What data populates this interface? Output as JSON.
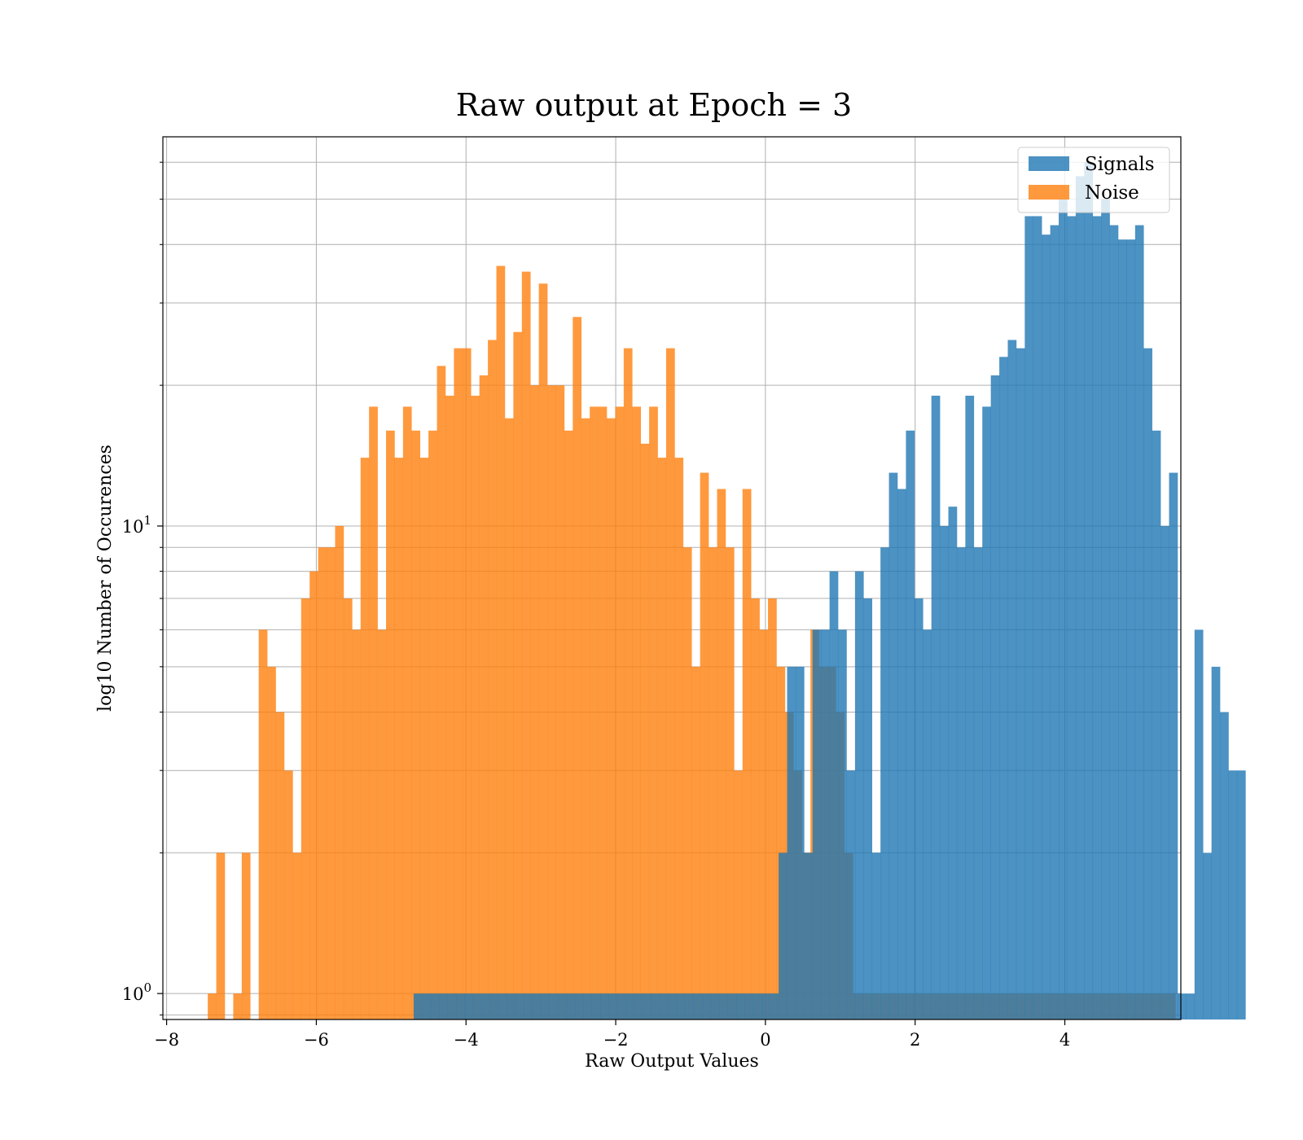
{
  "chart_data": {
    "type": "bar",
    "title": "Raw output at Epoch = 3",
    "xlabel": "Raw Output Values",
    "ylabel": "log10 Number of Occurences",
    "xlim": [
      -8.05,
      5.55
    ],
    "ylim": [
      0.88,
      68
    ],
    "yscale": "log",
    "grid": true,
    "legend_position": "top-right",
    "xticks": [
      -8,
      -6,
      -4,
      -2,
      0,
      2,
      4
    ],
    "xtick_labels": [
      "−8",
      "−6",
      "−4",
      "−2",
      "0",
      "2",
      "4"
    ],
    "yticks_major": [
      1,
      10
    ],
    "ytick_labels": [
      {
        "base": "10",
        "exp": "0"
      },
      {
        "base": "10",
        "exp": "1"
      }
    ],
    "yticks_minor": [
      0.9,
      2,
      3,
      4,
      5,
      6,
      7,
      8,
      9,
      20,
      30,
      40,
      50,
      60
    ],
    "series": [
      {
        "name": "Signals",
        "color": "#1f77b4",
        "opacity": 0.8,
        "bin_start": -4.7,
        "bin_width": 0.1134,
        "counts": [
          1,
          1,
          1,
          1,
          1,
          1,
          1,
          1,
          1,
          1,
          1,
          1,
          1,
          1,
          1,
          1,
          1,
          1,
          1,
          1,
          1,
          1,
          1,
          1,
          1,
          1,
          1,
          1,
          1,
          1,
          1,
          1,
          1,
          1,
          1,
          1,
          1,
          1,
          1,
          1,
          1,
          1,
          1,
          2,
          5,
          5,
          2,
          6,
          6,
          8,
          6,
          3,
          8,
          7,
          2,
          9,
          13,
          12,
          16,
          7,
          6,
          19,
          10,
          11,
          9,
          19,
          9,
          18,
          21,
          23,
          25,
          24,
          46,
          46,
          42,
          44,
          50,
          46,
          56,
          60,
          46,
          50,
          44,
          41,
          41,
          44,
          24,
          16,
          10,
          13,
          1,
          1,
          6,
          2,
          5,
          4,
          3,
          3
        ]
      },
      {
        "name": "Noise",
        "color": "#ff7f0e",
        "opacity": 0.8,
        "bin_start": -7.45,
        "bin_width": 0.1134,
        "counts": [
          1,
          2,
          0,
          1,
          2,
          0,
          6,
          5,
          4,
          3,
          2,
          7,
          8,
          9,
          9,
          10,
          7,
          6,
          14,
          18,
          6,
          16,
          14,
          18,
          16,
          14,
          16,
          22,
          19,
          24,
          24,
          19,
          21,
          25,
          36,
          17,
          26,
          35,
          20,
          33,
          20,
          20,
          16,
          28,
          17,
          18,
          18,
          17,
          18,
          24,
          18,
          15,
          18,
          14,
          24,
          14,
          9,
          5,
          13,
          9,
          12,
          9,
          3,
          12,
          7,
          6,
          7,
          5,
          4,
          3,
          2,
          6,
          5,
          5,
          4,
          2,
          1,
          1,
          1,
          1,
          1,
          1,
          1,
          1,
          1,
          1,
          1,
          1,
          1,
          1,
          1,
          1,
          1,
          1,
          1,
          1,
          1,
          1,
          1,
          1,
          1,
          1,
          1,
          1,
          1,
          1,
          1,
          1,
          1,
          1,
          1,
          1,
          1,
          1
        ]
      }
    ]
  }
}
